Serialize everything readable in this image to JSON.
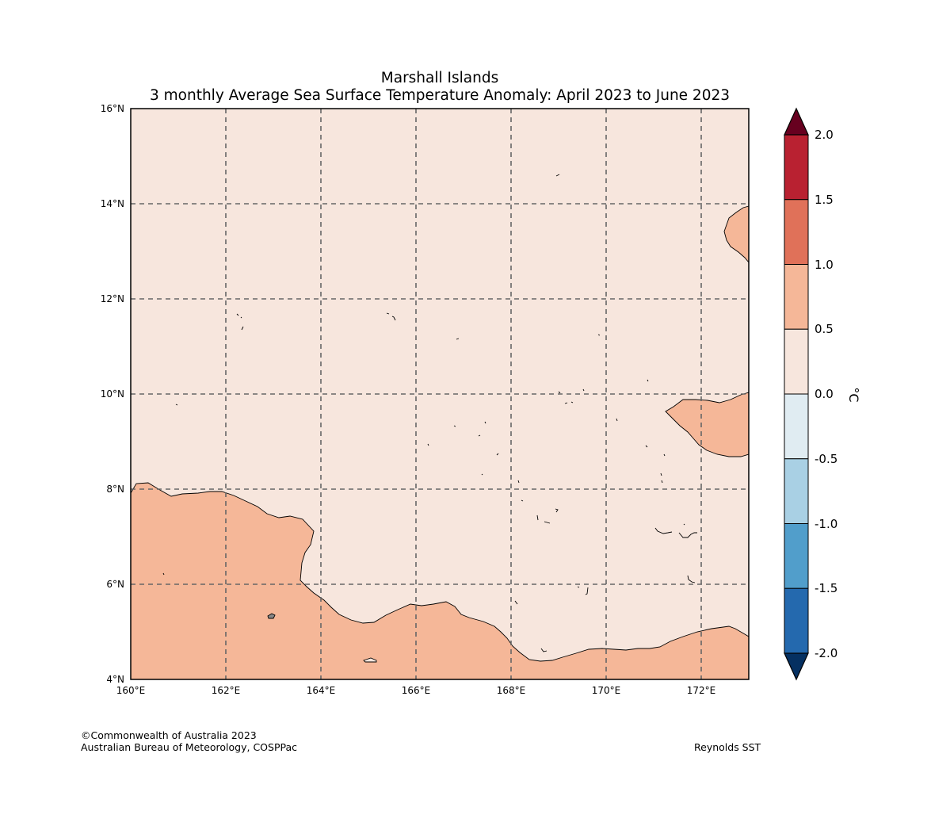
{
  "title": {
    "line1": "Marshall Islands",
    "line2": "3 monthly Average Sea Surface Temperature Anomaly: April 2023 to June 2023"
  },
  "map": {
    "region": "Marshall Islands",
    "lon_range": [
      160,
      173
    ],
    "lat_range": [
      4,
      16
    ],
    "gridlines": "dashed, every 2 degrees",
    "x_ticks": [
      "160°E",
      "162°E",
      "164°E",
      "166°E",
      "168°E",
      "170°E",
      "172°E"
    ],
    "y_ticks": [
      "16°N",
      "14°N",
      "12°N",
      "10°N",
      "8°N",
      "6°N",
      "4°N"
    ],
    "background_class": "0.0 to 0.5 °C",
    "warm_regions_class": "0.5 to 1.0 °C",
    "colors": {
      "anomaly_0_to_0.5": "#f7e6dd",
      "anomaly_0.5_to_1.0": "#f5b798",
      "coastline": "#000000",
      "land": "#888888",
      "gridline": "#666666"
    }
  },
  "colorbar": {
    "unit": "°C",
    "ticks": [
      "2.0",
      "1.5",
      "1.0",
      "0.5",
      "0.0",
      "-0.5",
      "-1.0",
      "-1.5",
      "-2.0"
    ],
    "bins": [
      {
        "range": [
          1.5,
          2.0
        ],
        "color": "#b92131"
      },
      {
        "range": [
          1.0,
          1.5
        ],
        "color": "#e07159"
      },
      {
        "range": [
          0.5,
          1.0
        ],
        "color": "#f5b798"
      },
      {
        "range": [
          0.0,
          0.5
        ],
        "color": "#f7e6dd"
      },
      {
        "range": [
          -0.5,
          0.0
        ],
        "color": "#e0ecf2"
      },
      {
        "range": [
          -1.0,
          -0.5
        ],
        "color": "#a9d0e4"
      },
      {
        "range": [
          -1.5,
          -1.0
        ],
        "color": "#519ecb"
      },
      {
        "range": [
          -2.0,
          -1.5
        ],
        "color": "#2469ae"
      }
    ],
    "over_color": "#67001f",
    "under_color": "#053061"
  },
  "footer": {
    "copyright": "©Commonwealth of Australia 2023",
    "agency": "Australian Bureau of Meteorology, COSPPac",
    "source": "Reynolds SST"
  }
}
